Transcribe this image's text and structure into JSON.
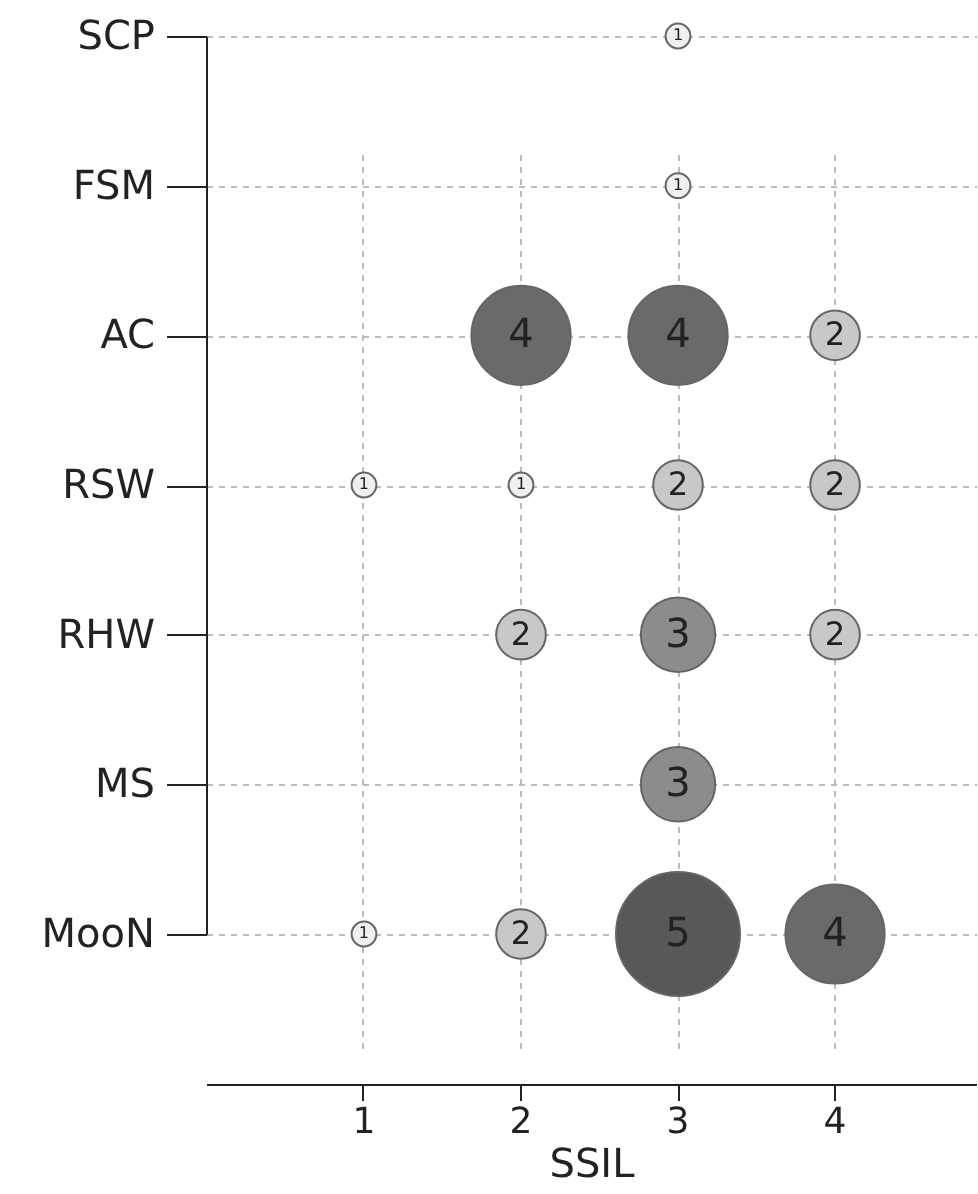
{
  "chart_data": {
    "type": "heatmap",
    "xlabel": "SSIL",
    "categories": [
      "1",
      "2",
      "3",
      "4"
    ],
    "y_categories": [
      "SCP",
      "FSM",
      "AC",
      "RSW",
      "RHW",
      "MS",
      "MooN"
    ],
    "cells": [
      [
        null,
        null,
        1,
        null
      ],
      [
        null,
        null,
        1,
        null
      ],
      [
        null,
        4,
        4,
        2
      ],
      [
        1,
        1,
        2,
        2
      ],
      [
        null,
        2,
        3,
        2
      ],
      [
        null,
        null,
        3,
        null
      ],
      [
        1,
        2,
        5,
        4
      ]
    ],
    "colors": [
      [
        null,
        null,
        "#f0f0f0",
        null
      ],
      [
        null,
        null,
        "#f0f0f0",
        null
      ],
      [
        null,
        "#6a6a6a",
        "#6a6a6a",
        "#c8c8c8"
      ],
      [
        "#f0f0f0",
        "#f0f0f0",
        "#c8c8c8",
        "#c8c8c8"
      ],
      [
        null,
        "#c8c8c8",
        "#8c8c8c",
        "#c8c8c8"
      ],
      [
        null,
        null,
        "#8c8c8c",
        null
      ],
      [
        "#f0f0f0",
        "#c8c8c8",
        "#585858",
        "#6a6a6a"
      ]
    ],
    "data_labels": true,
    "grid": true
  }
}
